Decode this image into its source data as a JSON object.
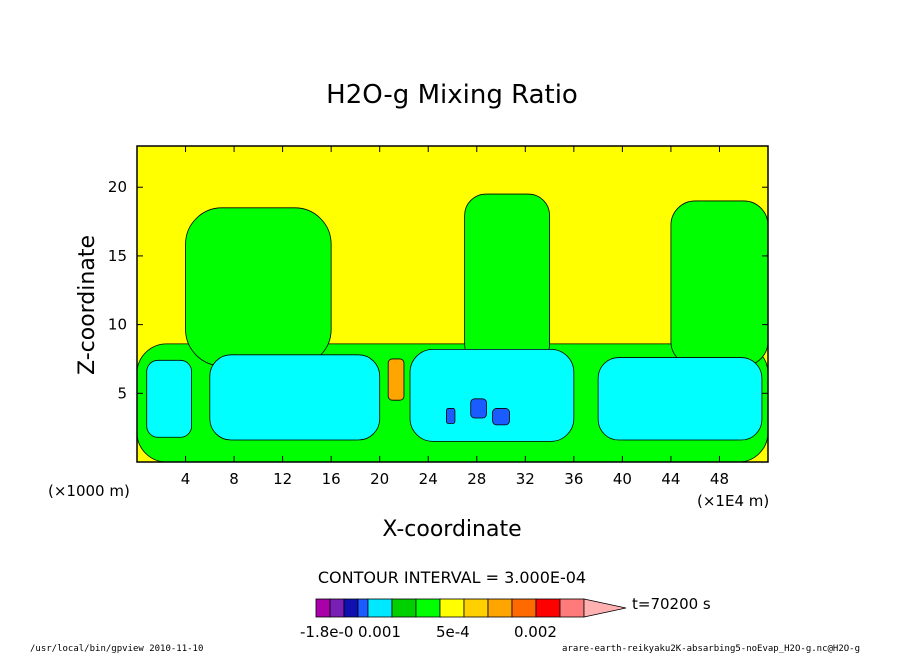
{
  "chart_data": {
    "type": "heatmap",
    "title": "H2O-g Mixing Ratio",
    "xlabel": "X-coordinate",
    "ylabel": "Z-coordinate",
    "x_unit_left": "(×1000 m)",
    "x_unit_right": "(×1E4 m)",
    "xlim": [
      0,
      52
    ],
    "ylim": [
      0,
      23
    ],
    "x_ticks": [
      4,
      8,
      12,
      16,
      20,
      24,
      28,
      32,
      36,
      40,
      44,
      48
    ],
    "y_ticks": [
      5,
      10,
      15,
      20
    ],
    "contour_interval_text": "CONTOUR INTERVAL = 3.000E-04",
    "time_label": "t=70200 s",
    "colorbar_labels": [
      "-1.8e-0",
      "0.001",
      "5e-4",
      "0.002"
    ],
    "colorbar_colors": [
      "#aa00aa",
      "#7a1fb5",
      "#1010b0",
      "#1a5cff",
      "#00e8ff",
      "#00d000",
      "#00ff00",
      "#ffff00",
      "#ffd000",
      "#ffa500",
      "#ff6a00",
      "#ff0000",
      "#ff7a7a",
      "#ffb0b0"
    ],
    "regions": [
      {
        "name": "moist-boundary-layer",
        "color": "#00ff00",
        "x": [
          0,
          52
        ],
        "z": [
          0,
          8.6
        ]
      },
      {
        "name": "moist-column-1",
        "color": "#00ff00",
        "x": [
          4,
          16
        ],
        "z": [
          7,
          18.5
        ]
      },
      {
        "name": "moist-column-2",
        "color": "#00ff00",
        "x": [
          27,
          34
        ],
        "z": [
          7,
          19.5
        ]
      },
      {
        "name": "moist-column-3",
        "color": "#00ff00",
        "x": [
          44,
          52
        ],
        "z": [
          7,
          19
        ]
      },
      {
        "name": "dry-layer-1",
        "color": "#00ffff",
        "x": [
          0.8,
          4.5
        ],
        "z": [
          1.8,
          7.4
        ]
      },
      {
        "name": "dry-layer-2",
        "color": "#00ffff",
        "x": [
          6,
          20
        ],
        "z": [
          1.6,
          7.8
        ]
      },
      {
        "name": "dry-layer-3",
        "color": "#00ffff",
        "x": [
          22.5,
          36
        ],
        "z": [
          1.5,
          8.2
        ]
      },
      {
        "name": "dry-layer-4",
        "color": "#00ffff",
        "x": [
          38,
          51.5
        ],
        "z": [
          1.6,
          7.6
        ]
      },
      {
        "name": "min-1",
        "color": "#1a5cff",
        "x": [
          25.5,
          26.2
        ],
        "z": [
          2.8,
          3.9
        ]
      },
      {
        "name": "min-2",
        "color": "#1a5cff",
        "x": [
          27.5,
          28.8
        ],
        "z": [
          3.2,
          4.6
        ]
      },
      {
        "name": "min-3",
        "color": "#1a5cff",
        "x": [
          29.3,
          30.7
        ],
        "z": [
          2.7,
          3.9
        ]
      },
      {
        "name": "max-1",
        "color": "#ffa500",
        "x": [
          20.7,
          22
        ],
        "z": [
          4.5,
          7.5
        ]
      }
    ],
    "grid": false
  },
  "footer": {
    "left": "/usr/local/bin/gpview  2010-11-10",
    "right": "arare-earth-reikyaku2K-absarbing5-noEvap_H2O-g.nc@H2O-g"
  }
}
